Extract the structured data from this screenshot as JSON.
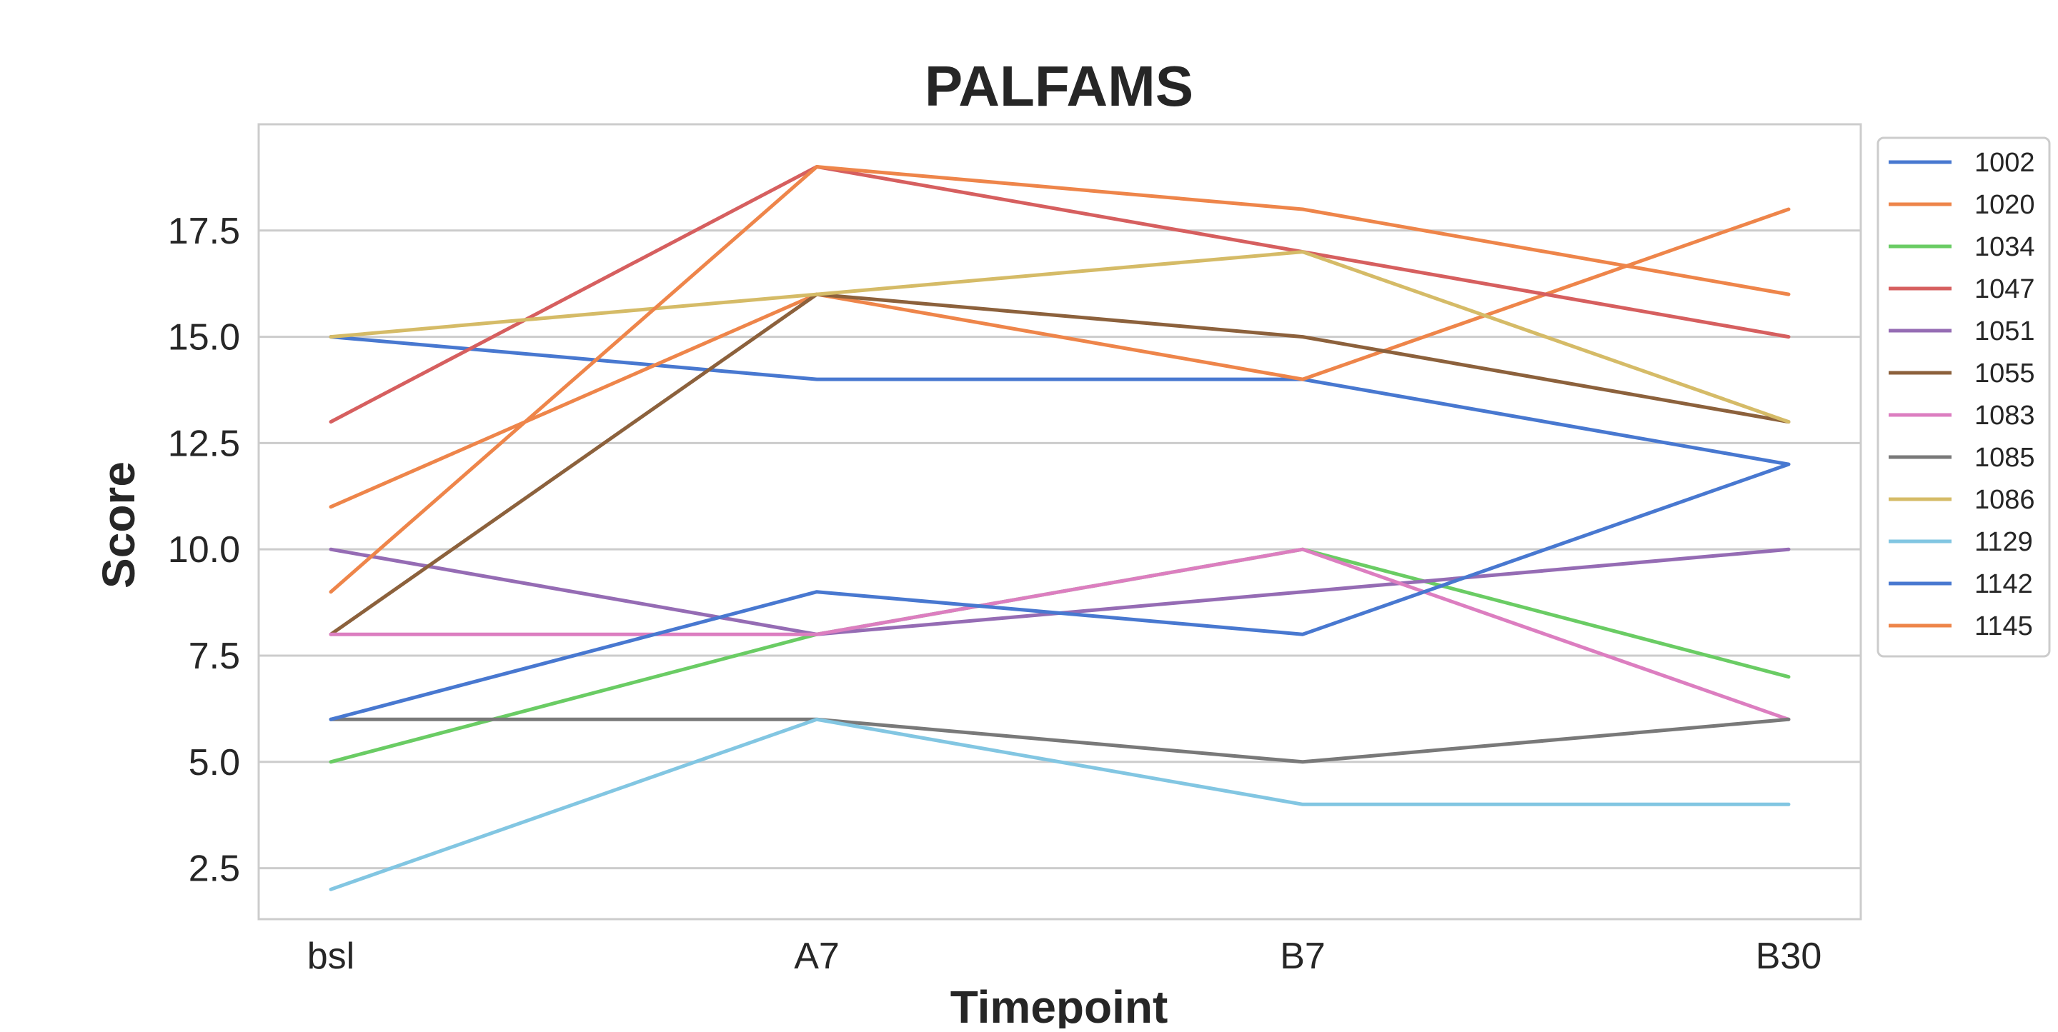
{
  "chart_data": {
    "type": "line",
    "title": "PALFAMS",
    "xlabel": "Timepoint",
    "ylabel": "Score",
    "categories": [
      "bsl",
      "A7",
      "B7",
      "B30"
    ],
    "ylim": [
      1.3,
      20.0
    ],
    "yticks": [
      2.5,
      5.0,
      7.5,
      10.0,
      12.5,
      15.0,
      17.5
    ],
    "ytick_labels": [
      "2.5",
      "5.0",
      "7.5",
      "10.0",
      "12.5",
      "15.0",
      "17.5"
    ],
    "grid": "horizontal",
    "legend_position": "outside-right",
    "series": [
      {
        "name": "1002",
        "color": "#4878d0",
        "values": [
          15,
          14,
          14,
          12
        ]
      },
      {
        "name": "1020",
        "color": "#ee854a",
        "values": [
          11,
          16,
          14,
          18
        ]
      },
      {
        "name": "1034",
        "color": "#6acc64",
        "values": [
          5,
          8,
          10,
          7
        ]
      },
      {
        "name": "1047",
        "color": "#d65f5f",
        "values": [
          13,
          19,
          17,
          15
        ]
      },
      {
        "name": "1051",
        "color": "#956cb4",
        "values": [
          10,
          8,
          9,
          10
        ]
      },
      {
        "name": "1055",
        "color": "#8c613c",
        "values": [
          8,
          16,
          15,
          13
        ]
      },
      {
        "name": "1083",
        "color": "#dc7ec0",
        "values": [
          8,
          8,
          10,
          6
        ]
      },
      {
        "name": "1085",
        "color": "#797979",
        "values": [
          6,
          6,
          5,
          6
        ]
      },
      {
        "name": "1086",
        "color": "#d5bb67",
        "values": [
          15,
          16,
          17,
          13
        ]
      },
      {
        "name": "1129",
        "color": "#82c6e2",
        "values": [
          2,
          6,
          4,
          4
        ]
      },
      {
        "name": "1142",
        "color": "#4878d0",
        "values": [
          6,
          9,
          8,
          12
        ]
      },
      {
        "name": "1145",
        "color": "#ee854a",
        "values": [
          9,
          19,
          18,
          16
        ]
      }
    ]
  }
}
